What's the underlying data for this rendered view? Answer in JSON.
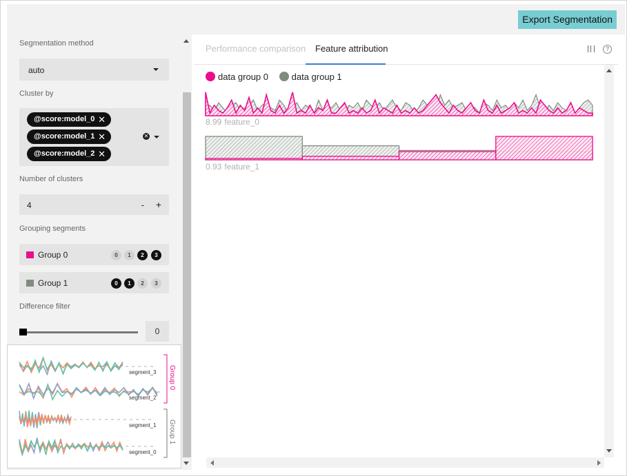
{
  "toolbar": {
    "export_label": "Export Segmentation"
  },
  "sidebar": {
    "segmentation_method": {
      "label": "Segmentation method",
      "value": "auto"
    },
    "cluster_by": {
      "label": "Cluster by",
      "chips": [
        "@score:model_0",
        "@score:model_1",
        "@score:model_2"
      ]
    },
    "number_of_clusters": {
      "label": "Number of clusters",
      "value": "4",
      "minus": "-",
      "plus": "+"
    },
    "grouping_segments": {
      "label": "Grouping segments",
      "groups": [
        {
          "name": "Group 0",
          "color": "#ea0d8c",
          "segments": [
            {
              "id": "0",
              "selected": false
            },
            {
              "id": "1",
              "selected": false
            },
            {
              "id": "2",
              "selected": true
            },
            {
              "id": "3",
              "selected": true
            }
          ]
        },
        {
          "name": "Group 1",
          "color": "#818c80",
          "segments": [
            {
              "id": "0",
              "selected": true
            },
            {
              "id": "1",
              "selected": true
            },
            {
              "id": "2",
              "selected": false
            },
            {
              "id": "3",
              "selected": false
            }
          ]
        }
      ]
    },
    "difference_filter": {
      "label": "Difference filter",
      "value": "0",
      "slider_fraction": 0
    },
    "thumbnail": {
      "segments": [
        "segment_3",
        "segment_2",
        "segment_1",
        "segment_0"
      ],
      "groups": [
        "Group 0",
        "Group 1"
      ],
      "colors": [
        "#8da0cb",
        "#fc8d62",
        "#66c2a5"
      ]
    }
  },
  "tabs": [
    {
      "label": "Performance comparison",
      "active": false
    },
    {
      "label": "Feature attribution",
      "active": true
    }
  ],
  "icons": {
    "columns": "columns-icon",
    "help": "help-icon",
    "help_glyph": "?"
  },
  "legend": [
    {
      "label": "data group 0",
      "color": "#ea0d8c"
    },
    {
      "label": "data group 1",
      "color": "#818c80"
    }
  ],
  "features": [
    {
      "value_label": "8.99",
      "name": "feature_0"
    },
    {
      "value_label": "0.93",
      "name": "feature_1"
    }
  ],
  "chart_data": {
    "type": "area",
    "series": [
      {
        "name": "data group 0",
        "color": "#ea0d8c",
        "feature_0": [
          0.9,
          0.1,
          0.4,
          0.2,
          0.1,
          0.3,
          0.6,
          0.1,
          0.4,
          0.2,
          0.7,
          0.1,
          0.3,
          0.1,
          0.8,
          0.2,
          0.1,
          0.4,
          0.1,
          0.3,
          0.9,
          0.1,
          0.2,
          0.1,
          0.4,
          0.1,
          0.3,
          0.2,
          0.6,
          0.1,
          0.1,
          0.3,
          0.5,
          0.1,
          0.2,
          0.1,
          0.3,
          0.1,
          0.2,
          0.6,
          0.1,
          0.3,
          0.2,
          0.1,
          0.4,
          0.1,
          0.2,
          0.1,
          0.3,
          0.1,
          0.2,
          0.4,
          0.6,
          0.8,
          0.5,
          0.3,
          0.1,
          0.4,
          0.2,
          0.1,
          0.3,
          0.5,
          0.2,
          0.1,
          0.6,
          0.2,
          0.1,
          0.4,
          0.1,
          0.2,
          0.3,
          0.5,
          0.1,
          0.2,
          0.1,
          0.3,
          0.1,
          0.6,
          0.4,
          0.2,
          0.1,
          0.3,
          0.1,
          0.2,
          0.5,
          0.1,
          0.3,
          0.2,
          0.1,
          0.1
        ],
        "feature_1": [
          0.05,
          0.15,
          0.35,
          1.0
        ]
      },
      {
        "name": "data group 1",
        "color": "#818c80",
        "feature_0": [
          0.3,
          0.4,
          0.2,
          0.5,
          0.3,
          0.1,
          0.4,
          0.5,
          0.2,
          0.3,
          0.4,
          0.6,
          0.2,
          0.4,
          0.5,
          0.3,
          0.2,
          0.6,
          0.4,
          0.1,
          0.3,
          0.5,
          0.2,
          0.4,
          0.3,
          0.1,
          0.6,
          0.2,
          0.4,
          0.3,
          0.5,
          0.2,
          0.1,
          0.4,
          0.3,
          0.5,
          0.2,
          0.6,
          0.4,
          0.3,
          0.5,
          0.2,
          0.4,
          0.6,
          0.3,
          0.2,
          0.5,
          0.4,
          0.1,
          0.3,
          0.6,
          0.4,
          0.5,
          0.3,
          0.8,
          0.4,
          0.6,
          0.3,
          0.4,
          0.5,
          0.2,
          0.4,
          0.3,
          0.1,
          0.5,
          0.4,
          0.2,
          0.6,
          0.3,
          0.4,
          0.2,
          0.5,
          0.3,
          0.6,
          0.2,
          0.4,
          0.8,
          0.3,
          0.1,
          0.4,
          0.2,
          0.5,
          0.3,
          0.2,
          0.4,
          0.1,
          0.3,
          0.5,
          0.6,
          0.4
        ],
        "feature_1": [
          1.0,
          0.6,
          0.4,
          0.35
        ]
      }
    ]
  }
}
